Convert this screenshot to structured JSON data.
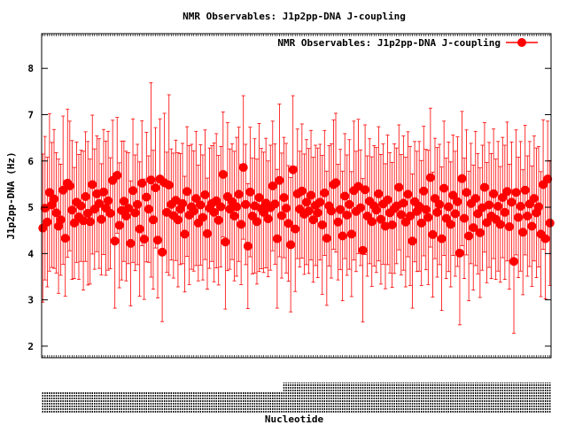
{
  "chart_data": {
    "type": "scatter",
    "title": "NMR Observables: J1p2pp-DNA J-coupling",
    "xlabel": "Nucleotide",
    "ylabel": "J1p2pp-DNA (Hz)",
    "ylim": [
      1.75,
      8.75
    ],
    "yticks": [
      2,
      3,
      4,
      5,
      6,
      7,
      8
    ],
    "grid": false,
    "legend": {
      "position": "top-right",
      "entries": [
        "NMR Observables: J1p2pp-DNA J-coupling"
      ]
    },
    "series": [
      {
        "name": "NMR Observables: J1p2pp-DNA J-coupling",
        "color": "#ff0000",
        "marker": "circle",
        "error_bars": true,
        "points": [
          [
            1,
            4.55,
            1.6
          ],
          [
            2,
            4.98,
            1.55
          ],
          [
            3,
            4.68,
            1.4
          ],
          [
            4,
            5.32,
            1.7
          ],
          [
            5,
            5.05,
            1.35
          ],
          [
            6,
            5.18,
            1.5
          ],
          [
            7,
            4.88,
            1.3
          ],
          [
            8,
            4.59,
            1.45
          ],
          [
            9,
            4.73,
            1.2
          ],
          [
            10,
            5.37,
            1.6
          ],
          [
            11,
            4.33,
            1.25
          ],
          [
            12,
            5.52,
            1.6
          ],
          [
            13,
            5.46,
            1.4
          ],
          [
            14,
            4.94,
            1.5
          ],
          [
            15,
            4.66,
            1.2
          ],
          [
            16,
            5.11,
            1.3
          ],
          [
            17,
            4.79,
            1.35
          ],
          [
            18,
            5.03,
            1.2
          ],
          [
            19,
            4.71,
            1.5
          ],
          [
            20,
            5.23,
            1.4
          ],
          [
            21,
            4.87,
            1.55
          ],
          [
            22,
            4.69,
            1.35
          ],
          [
            23,
            5.49,
            1.5
          ],
          [
            24,
            4.96,
            1.3
          ],
          [
            25,
            5.29,
            1.25
          ],
          [
            26,
            5.08,
            1.4
          ],
          [
            27,
            4.74,
            1.2
          ],
          [
            28,
            5.33,
            1.35
          ],
          [
            29,
            4.98,
            1.45
          ],
          [
            30,
            5.14,
            1.5
          ],
          [
            31,
            4.87,
            1.2
          ],
          [
            32,
            5.58,
            1.3
          ],
          [
            33,
            4.27,
            1.45
          ],
          [
            34,
            5.69,
            1.25
          ],
          [
            35,
            4.61,
            1.35
          ],
          [
            36,
            4.93,
            1.5
          ],
          [
            37,
            5.13,
            1.3
          ],
          [
            38,
            4.81,
            1.4
          ],
          [
            39,
            4.98,
            1.2
          ],
          [
            40,
            4.22,
            1.35
          ],
          [
            41,
            5.36,
            1.55
          ],
          [
            42,
            4.88,
            1.25
          ],
          [
            43,
            5.06,
            1.3
          ],
          [
            44,
            4.53,
            1.45
          ],
          [
            45,
            5.52,
            1.35
          ],
          [
            46,
            4.31,
            1.3
          ],
          [
            47,
            5.22,
            1.4
          ],
          [
            48,
            4.96,
            1.15
          ],
          [
            49,
            5.59,
            2.1
          ],
          [
            50,
            4.73,
            1.5
          ],
          [
            51,
            5.42,
            1.3
          ],
          [
            52,
            4.29,
            1.25
          ],
          [
            53,
            5.61,
            1.3
          ],
          [
            54,
            4.03,
            1.5
          ],
          [
            55,
            5.53,
            1.5
          ],
          [
            56,
            4.89,
            1.3
          ],
          [
            57,
            5.48,
            1.95
          ],
          [
            58,
            5.06,
            1.2
          ],
          [
            59,
            4.82,
            1.35
          ],
          [
            60,
            5.15,
            1.3
          ],
          [
            61,
            4.73,
            1.45
          ],
          [
            62,
            4.96,
            1.2
          ],
          [
            63,
            5.08,
            1.3
          ],
          [
            64,
            4.42,
            1.25
          ],
          [
            65,
            5.34,
            1.4
          ],
          [
            66,
            4.83,
            1.5
          ],
          [
            67,
            5.01,
            1.35
          ],
          [
            68,
            4.92,
            1.3
          ],
          [
            69,
            5.19,
            1.45
          ],
          [
            70,
            4.66,
            1.25
          ],
          [
            71,
            5.05,
            1.3
          ],
          [
            72,
            4.78,
            1.35
          ],
          [
            73,
            5.27,
            1.4
          ],
          [
            74,
            4.43,
            1.2
          ],
          [
            75,
            4.98,
            1.3
          ],
          [
            76,
            5.08,
            1.25
          ],
          [
            77,
            4.89,
            1.5
          ],
          [
            78,
            5.14,
            1.45
          ],
          [
            79,
            4.72,
            1.4
          ],
          [
            80,
            5.01,
            1.3
          ],
          [
            81,
            5.71,
            1.35
          ],
          [
            82,
            4.25,
            1.45
          ],
          [
            83,
            5.23,
            1.6
          ],
          [
            84,
            4.96,
            1.3
          ],
          [
            85,
            5.12,
            1.25
          ],
          [
            86,
            4.81,
            1.4
          ],
          [
            87,
            5.01,
            1.5
          ],
          [
            88,
            5.28,
            1.45
          ],
          [
            89,
            4.63,
            1.3
          ],
          [
            90,
            5.86,
            1.55
          ],
          [
            91,
            5.06,
            1.3
          ],
          [
            92,
            4.16,
            1.35
          ],
          [
            93,
            5.33,
            1.4
          ],
          [
            94,
            4.81,
            1.25
          ],
          [
            95,
            5.03,
            1.45
          ],
          [
            96,
            4.69,
            1.35
          ],
          [
            97,
            5.21,
            1.6
          ],
          [
            98,
            4.97,
            1.3
          ],
          [
            99,
            4.89,
            1.3
          ],
          [
            100,
            5.09,
            1.4
          ],
          [
            101,
            4.75,
            1.25
          ],
          [
            102,
            4.99,
            1.35
          ],
          [
            103,
            5.46,
            1.4
          ],
          [
            104,
            5.07,
            1.3
          ],
          [
            105,
            4.32,
            1.5
          ],
          [
            106,
            5.58,
            1.65
          ],
          [
            107,
            4.82,
            1.35
          ],
          [
            108,
            5.21,
            1.3
          ],
          [
            109,
            4.98,
            1.4
          ],
          [
            110,
            4.65,
            1.25
          ],
          [
            111,
            4.19,
            1.45
          ],
          [
            112,
            5.81,
            1.6
          ],
          [
            113,
            4.53,
            1.35
          ],
          [
            114,
            5.29,
            1.4
          ],
          [
            115,
            4.96,
            1.25
          ],
          [
            116,
            5.35,
            1.45
          ],
          [
            117,
            4.85,
            1.3
          ],
          [
            118,
            5.11,
            1.35
          ],
          [
            119,
            4.92,
            1.35
          ],
          [
            120,
            5.26,
            1.4
          ],
          [
            121,
            4.73,
            1.35
          ],
          [
            122,
            5.04,
            1.3
          ],
          [
            123,
            4.88,
            1.4
          ],
          [
            124,
            5.11,
            1.25
          ],
          [
            125,
            4.62,
            1.5
          ],
          [
            126,
            5.31,
            1.35
          ],
          [
            127,
            4.33,
            1.45
          ],
          [
            128,
            5.03,
            1.3
          ],
          [
            129,
            4.92,
            1.45
          ],
          [
            130,
            5.49,
            1.4
          ],
          [
            131,
            5.53,
            1.5
          ],
          [
            132,
            4.68,
            1.25
          ],
          [
            133,
            4.95,
            1.3
          ],
          [
            134,
            4.38,
            1.4
          ],
          [
            135,
            5.24,
            1.35
          ],
          [
            136,
            4.83,
            1.3
          ],
          [
            137,
            5.06,
            1.4
          ],
          [
            138,
            4.42,
            1.35
          ],
          [
            139,
            5.36,
            1.5
          ],
          [
            140,
            4.91,
            1.3
          ],
          [
            141,
            5.45,
            1.45
          ],
          [
            142,
            4.99,
            1.25
          ],
          [
            143,
            4.07,
            1.55
          ],
          [
            144,
            5.38,
            1.4
          ],
          [
            145,
            4.81,
            1.3
          ],
          [
            146,
            5.13,
            1.35
          ],
          [
            147,
            4.69,
            1.4
          ],
          [
            148,
            5.03,
            1.3
          ],
          [
            149,
            4.94,
            1.35
          ],
          [
            150,
            5.29,
            1.45
          ],
          [
            151,
            4.74,
            1.4
          ],
          [
            152,
            5.07,
            1.3
          ],
          [
            153,
            4.59,
            1.35
          ],
          [
            154,
            5.16,
            1.4
          ],
          [
            155,
            4.88,
            1.3
          ],
          [
            156,
            4.62,
            1.35
          ],
          [
            157,
            4.97,
            1.4
          ],
          [
            158,
            5.03,
            1.25
          ],
          [
            159,
            5.43,
            1.35
          ],
          [
            160,
            4.84,
            1.3
          ],
          [
            161,
            5.09,
            1.45
          ],
          [
            162,
            4.68,
            1.4
          ],
          [
            163,
            5.28,
            1.35
          ],
          [
            164,
            4.81,
            1.5
          ],
          [
            165,
            4.27,
            1.45
          ],
          [
            166,
            5.12,
            1.3
          ],
          [
            167,
            4.91,
            1.3
          ],
          [
            168,
            5.02,
            1.4
          ],
          [
            169,
            4.66,
            1.35
          ],
          [
            170,
            5.35,
            1.4
          ],
          [
            171,
            4.95,
            1.3
          ],
          [
            172,
            4.78,
            1.45
          ],
          [
            173,
            5.64,
            1.5
          ],
          [
            174,
            4.41,
            1.35
          ],
          [
            175,
            5.19,
            1.3
          ],
          [
            176,
            4.89,
            1.4
          ],
          [
            177,
            5.06,
            1.3
          ],
          [
            178,
            4.32,
            1.55
          ],
          [
            179,
            5.41,
            1.45
          ],
          [
            180,
            4.76,
            1.3
          ],
          [
            181,
            5.01,
            1.4
          ],
          [
            182,
            4.63,
            1.35
          ],
          [
            183,
            5.26,
            1.3
          ],
          [
            184,
            4.86,
            1.35
          ],
          [
            185,
            5.12,
            1.4
          ],
          [
            186,
            4.01,
            1.55
          ],
          [
            187,
            5.62,
            1.45
          ],
          [
            188,
            4.76,
            1.3
          ],
          [
            189,
            5.32,
            1.35
          ],
          [
            190,
            4.38,
            1.4
          ],
          [
            191,
            5.08,
            1.3
          ],
          [
            192,
            4.56,
            1.35
          ],
          [
            193,
            5.19,
            1.45
          ],
          [
            194,
            4.86,
            1.3
          ],
          [
            195,
            4.45,
            1.4
          ],
          [
            196,
            4.99,
            1.35
          ],
          [
            197,
            5.43,
            1.4
          ],
          [
            198,
            4.67,
            1.3
          ],
          [
            199,
            5.05,
            1.35
          ],
          [
            200,
            4.81,
            1.35
          ],
          [
            201,
            5.29,
            1.4
          ],
          [
            202,
            4.74,
            1.3
          ],
          [
            203,
            5.02,
            1.4
          ],
          [
            204,
            4.63,
            1.25
          ],
          [
            205,
            5.21,
            1.3
          ],
          [
            206,
            4.89,
            1.45
          ],
          [
            207,
            5.34,
            1.5
          ],
          [
            208,
            4.58,
            1.35
          ],
          [
            209,
            5.11,
            1.3
          ],
          [
            210,
            3.83,
            1.55
          ],
          [
            211,
            5.32,
            1.35
          ],
          [
            212,
            4.78,
            1.3
          ],
          [
            213,
            5.02,
            1.4
          ],
          [
            214,
            4.46,
            1.35
          ],
          [
            215,
            5.37,
            1.4
          ],
          [
            216,
            4.81,
            1.3
          ],
          [
            217,
            5.07,
            1.35
          ],
          [
            218,
            4.59,
            1.3
          ],
          [
            219,
            5.19,
            1.35
          ],
          [
            220,
            4.88,
            1.4
          ],
          [
            221,
            5.01,
            1.3
          ],
          [
            222,
            4.42,
            1.35
          ],
          [
            223,
            5.49,
            1.4
          ],
          [
            224,
            4.32,
            1.3
          ],
          [
            225,
            5.61,
            1.25
          ],
          [
            226,
            4.66,
            1.35
          ]
        ]
      }
    ]
  }
}
